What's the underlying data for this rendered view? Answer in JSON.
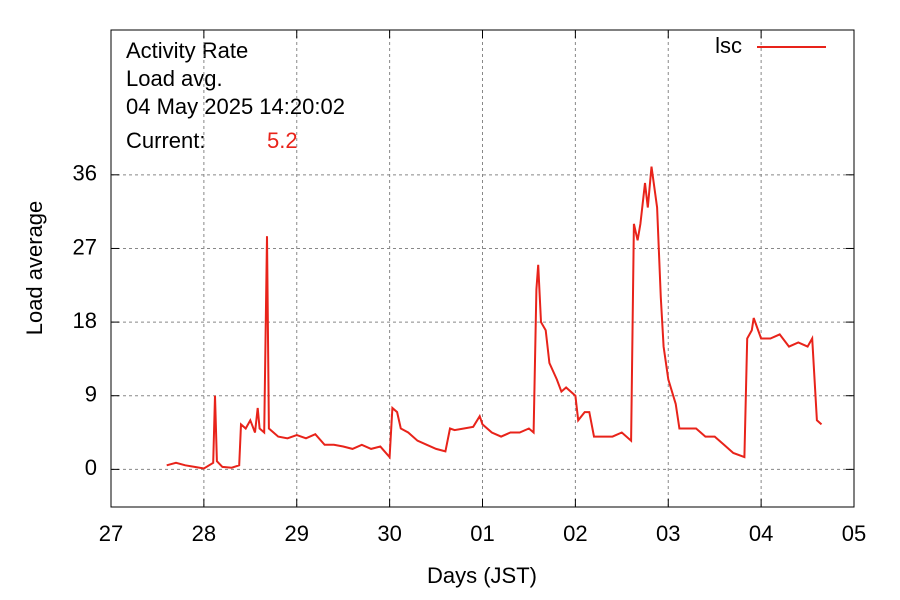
{
  "chart_data": {
    "type": "line",
    "title": "Activity Rate",
    "subtitle": "Load avg.",
    "timestamp": "04 May 2025 14:20:02",
    "current_label": "Current:",
    "current_value": 5.2,
    "xlabel": "Days (JST)",
    "ylabel": "Load average",
    "x": [
      0.6,
      0.7,
      0.8,
      0.9,
      1.0,
      1.1,
      1.12,
      1.14,
      1.2,
      1.3,
      1.38,
      1.4,
      1.45,
      1.5,
      1.55,
      1.58,
      1.6,
      1.65,
      1.68,
      1.7,
      1.75,
      1.8,
      1.9,
      2.0,
      2.1,
      2.2,
      2.3,
      2.4,
      2.5,
      2.6,
      2.7,
      2.8,
      2.9,
      3.0,
      3.03,
      3.08,
      3.12,
      3.2,
      3.3,
      3.4,
      3.5,
      3.6,
      3.65,
      3.7,
      3.8,
      3.9,
      3.97,
      4.0,
      4.1,
      4.2,
      4.3,
      4.4,
      4.5,
      4.55,
      4.58,
      4.6,
      4.63,
      4.68,
      4.72,
      4.8,
      4.85,
      4.9,
      5.0,
      5.03,
      5.1,
      5.15,
      5.2,
      5.3,
      5.4,
      5.5,
      5.6,
      5.63,
      5.67,
      5.7,
      5.75,
      5.78,
      5.82,
      5.88,
      5.92,
      5.95,
      6.0,
      6.08,
      6.12,
      6.2,
      6.3,
      6.4,
      6.5,
      6.6,
      6.7,
      6.82,
      6.85,
      6.9,
      6.92,
      7.0,
      7.1,
      7.2,
      7.3,
      7.4,
      7.5,
      7.55,
      7.6,
      7.65
    ],
    "series": [
      {
        "name": "lsc",
        "color": "#e8231a",
        "values": [
          0.5,
          0.8,
          0.5,
          0.3,
          0.1,
          0.8,
          9,
          1,
          0.3,
          0.2,
          0.5,
          5.5,
          5,
          6,
          4.5,
          7.5,
          5,
          4.5,
          28.5,
          5,
          4.5,
          4,
          3.8,
          4.2,
          3.8,
          4.3,
          3,
          3,
          2.8,
          2.5,
          3,
          2.5,
          2.8,
          1.5,
          7.5,
          7,
          5,
          4.5,
          3.5,
          3,
          2.5,
          2.2,
          5,
          4.8,
          5,
          5.2,
          6.5,
          5.5,
          4.5,
          4,
          4.5,
          4.5,
          5,
          4.5,
          22,
          25,
          18,
          17,
          13,
          11,
          9.5,
          10,
          9,
          6,
          7,
          7,
          4,
          4,
          4,
          4.5,
          3.5,
          30,
          28,
          30,
          35,
          32,
          37,
          32,
          21,
          15,
          11,
          8,
          5,
          5,
          5,
          4,
          4,
          3,
          2,
          1.5,
          16,
          17,
          18.5,
          16,
          16,
          16.5,
          15,
          15.5,
          15,
          16,
          6,
          5.5
        ]
      }
    ],
    "xlim": [
      0,
      8
    ],
    "xticks": [
      {
        "value": 0,
        "label": "27"
      },
      {
        "value": 1,
        "label": "28"
      },
      {
        "value": 2,
        "label": "29"
      },
      {
        "value": 3,
        "label": "30"
      },
      {
        "value": 4,
        "label": "01"
      },
      {
        "value": 5,
        "label": "02"
      },
      {
        "value": 6,
        "label": "03"
      },
      {
        "value": 7,
        "label": "04"
      },
      {
        "value": 8,
        "label": "05"
      }
    ],
    "ylim": [
      -4.6,
      53.7
    ],
    "yticks": [
      0,
      9,
      18,
      27,
      36
    ],
    "grid": true,
    "legend": "top-right"
  }
}
